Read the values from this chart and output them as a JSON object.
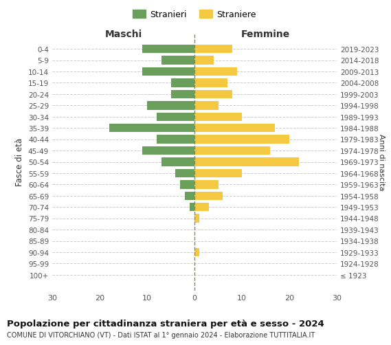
{
  "age_groups": [
    "0-4",
    "5-9",
    "10-14",
    "15-19",
    "20-24",
    "25-29",
    "30-34",
    "35-39",
    "40-44",
    "45-49",
    "50-54",
    "55-59",
    "60-64",
    "65-69",
    "70-74",
    "75-79",
    "80-84",
    "85-89",
    "90-94",
    "95-99",
    "100+"
  ],
  "birth_years": [
    "2019-2023",
    "2014-2018",
    "2009-2013",
    "2004-2008",
    "1999-2003",
    "1994-1998",
    "1989-1993",
    "1984-1988",
    "1979-1983",
    "1974-1978",
    "1969-1973",
    "1964-1968",
    "1959-1963",
    "1954-1958",
    "1949-1953",
    "1944-1948",
    "1939-1943",
    "1934-1938",
    "1929-1933",
    "1924-1928",
    "≤ 1923"
  ],
  "males": [
    11,
    7,
    11,
    5,
    5,
    10,
    8,
    18,
    8,
    11,
    7,
    4,
    3,
    2,
    1,
    0,
    0,
    0,
    0,
    0,
    0
  ],
  "females": [
    8,
    4,
    9,
    7,
    8,
    5,
    10,
    17,
    20,
    16,
    22,
    10,
    5,
    6,
    3,
    1,
    0,
    0,
    1,
    0,
    0
  ],
  "male_color": "#6a9f5b",
  "female_color": "#f5c842",
  "background_color": "#ffffff",
  "grid_color": "#cccccc",
  "title": "Popolazione per cittadinanza straniera per età e sesso - 2024",
  "subtitle": "COMUNE DI VITORCHIANO (VT) - Dati ISTAT al 1° gennaio 2024 - Elaborazione TUTTITALIA.IT",
  "xlabel_left": "Maschi",
  "xlabel_right": "Femmine",
  "ylabel_left": "Fasce di età",
  "ylabel_right": "Anni di nascita",
  "xlim": 30,
  "legend_stranieri": "Stranieri",
  "legend_straniere": "Straniere"
}
